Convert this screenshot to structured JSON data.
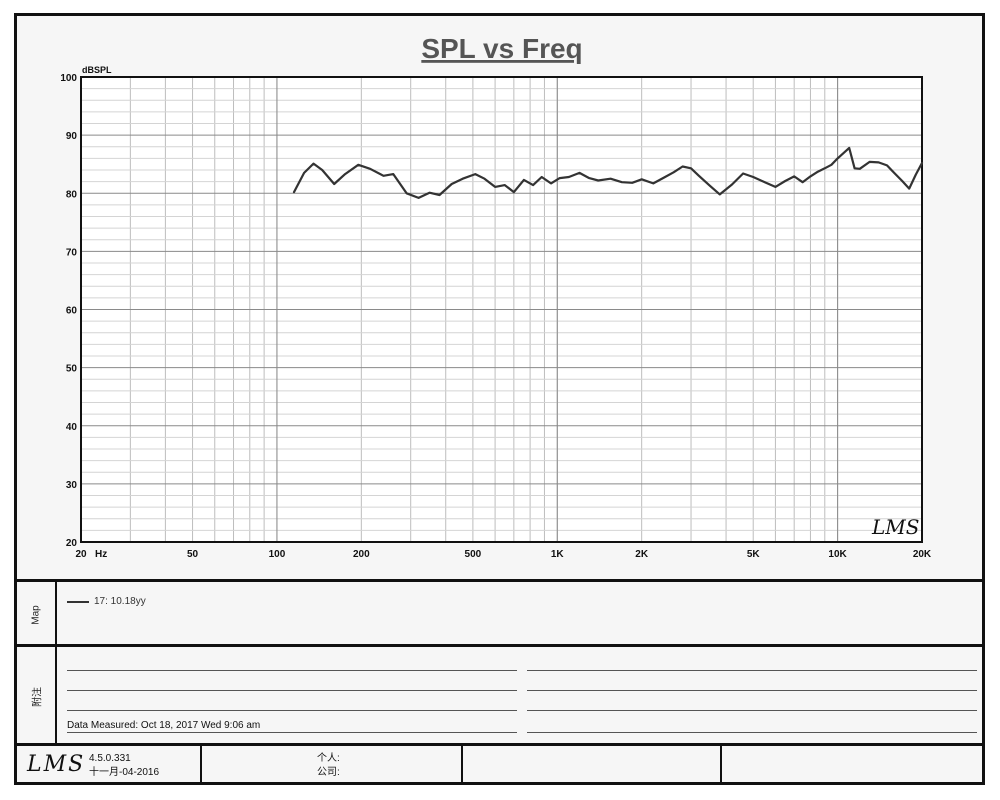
{
  "chart_data": {
    "type": "line",
    "title": "SPL vs Freq",
    "ylabel": "dBSPL",
    "xlabel": "Hz",
    "x_scale": "log",
    "xlim": [
      20,
      20000
    ],
    "ylim": [
      20,
      100
    ],
    "grid": true,
    "x_ticks": [
      {
        "value": 20,
        "label": "20"
      },
      {
        "value": 50,
        "label": "50"
      },
      {
        "value": 100,
        "label": "100"
      },
      {
        "value": 200,
        "label": "200"
      },
      {
        "value": 500,
        "label": "500"
      },
      {
        "value": 1000,
        "label": "1K"
      },
      {
        "value": 2000,
        "label": "2K"
      },
      {
        "value": 5000,
        "label": "5K"
      },
      {
        "value": 10000,
        "label": "10K"
      },
      {
        "value": 20000,
        "label": "20K"
      }
    ],
    "y_ticks": [
      20,
      30,
      40,
      50,
      60,
      70,
      80,
      90,
      100
    ],
    "series": [
      {
        "name": "17: 10.18yy",
        "color": "#333333",
        "x": [
          115,
          125,
          135,
          145,
          160,
          175,
          195,
          215,
          240,
          260,
          290,
          320,
          350,
          380,
          420,
          460,
          510,
          550,
          600,
          650,
          700,
          760,
          820,
          880,
          950,
          1020,
          1100,
          1200,
          1300,
          1400,
          1550,
          1700,
          1850,
          2000,
          2200,
          2400,
          2600,
          2800,
          3000,
          3200,
          3500,
          3800,
          4200,
          4600,
          5000,
          5500,
          6000,
          6500,
          7000,
          7500,
          8000,
          8500,
          9000,
          9500,
          10000,
          11000,
          11500,
          12000,
          13000,
          14000,
          15000,
          16000,
          17000,
          18000,
          19000,
          20000
        ],
        "y": [
          80.2,
          83.5,
          85.1,
          84.0,
          81.6,
          83.3,
          84.9,
          84.2,
          83.0,
          83.3,
          80.0,
          79.2,
          80.1,
          79.7,
          81.6,
          82.5,
          83.3,
          82.5,
          81.1,
          81.4,
          80.2,
          82.3,
          81.4,
          82.8,
          81.7,
          82.6,
          82.8,
          83.5,
          82.6,
          82.2,
          82.5,
          81.9,
          81.8,
          82.4,
          81.7,
          82.7,
          83.6,
          84.6,
          84.3,
          83.0,
          81.3,
          79.8,
          81.5,
          83.4,
          82.8,
          81.9,
          81.1,
          82.1,
          82.9,
          81.9,
          82.9,
          83.7,
          84.3,
          84.9,
          86.0,
          87.8,
          84.3,
          84.2,
          85.4,
          85.3,
          84.8,
          83.4,
          82.1,
          80.8,
          83.2,
          85.2
        ]
      }
    ]
  },
  "map_panel": {
    "label": "Map",
    "legend_text": "17: 10.18yy"
  },
  "notes_panel": {
    "label": "附注",
    "data_measured": "Data Measured: Oct 18, 2017  Wed  9:06 am"
  },
  "footer": {
    "logo_text": "LMS",
    "version": "4.5.0.331",
    "build_date": "十一月-04-2016",
    "person_label": "个人:",
    "company_label": "公司:"
  },
  "watermark_text": "LMS"
}
